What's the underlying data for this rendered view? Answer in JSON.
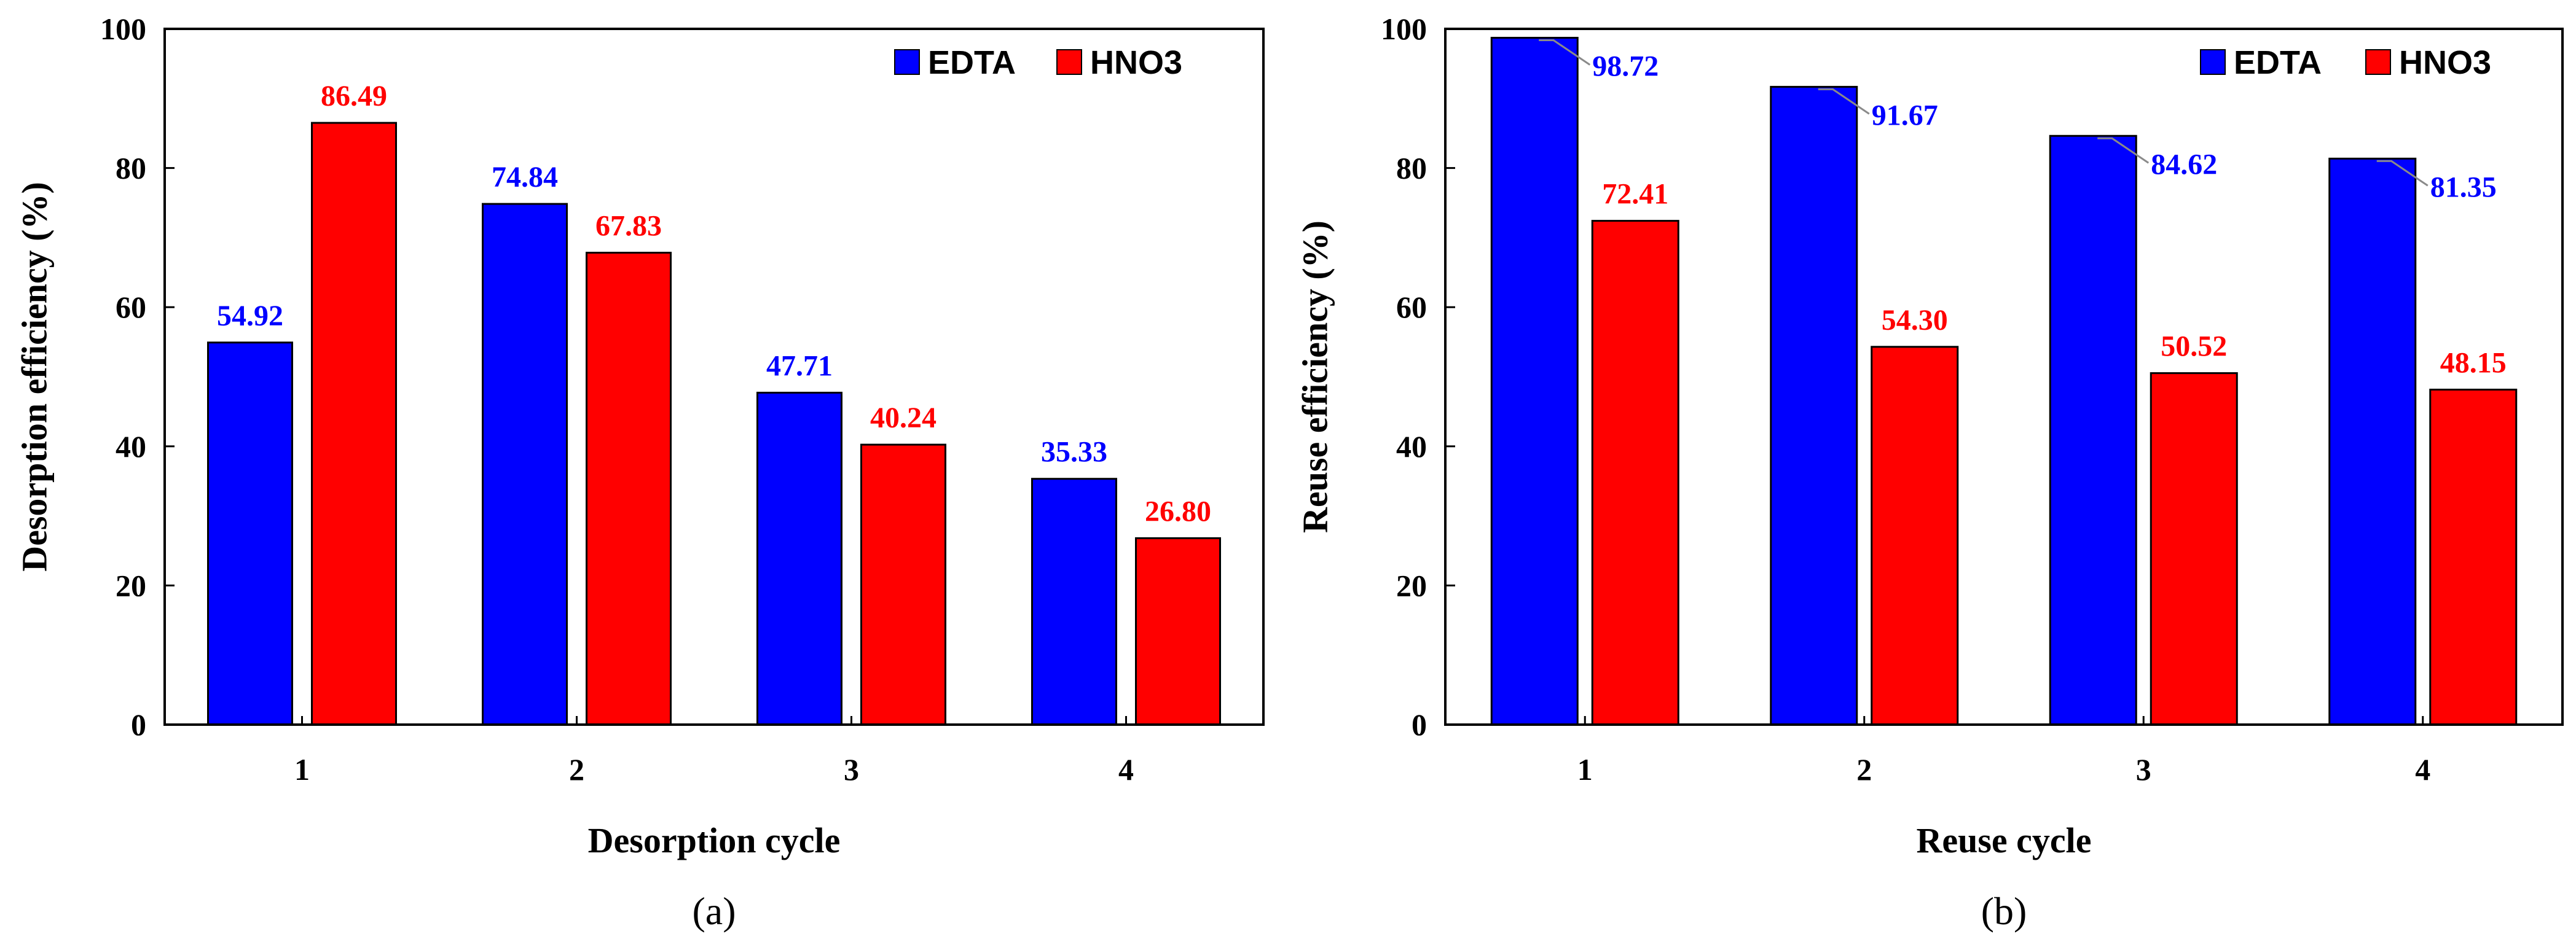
{
  "colors": {
    "EDTA": "#0000FF",
    "HNO3": "#FF0000",
    "axis": "#000000",
    "leader": "#8a8a8a"
  },
  "chart_data": [
    {
      "type": "bar",
      "panel_label": "(a)",
      "xlabel": "Desorption cycle",
      "ylabel": "Desorption  efficiency (%)",
      "categories": [
        "1",
        "2",
        "3",
        "4"
      ],
      "ylim": [
        0,
        100
      ],
      "yticks": [
        0,
        20,
        40,
        60,
        80,
        100
      ],
      "legend": "top-right",
      "series": [
        {
          "name": "EDTA",
          "values": [
            54.92,
            74.84,
            47.71,
            35.33
          ],
          "labels": [
            "54.92",
            "74.84",
            "47.71",
            "35.33"
          ]
        },
        {
          "name": "HNO3",
          "values": [
            86.49,
            67.83,
            40.24,
            26.8
          ],
          "labels": [
            "86.49",
            "67.83",
            "40.24",
            "26.80"
          ]
        }
      ]
    },
    {
      "type": "bar",
      "panel_label": "(b)",
      "xlabel": "Reuse cycle",
      "ylabel": "Reuse efficiency (%)",
      "categories": [
        "1",
        "2",
        "3",
        "4"
      ],
      "ylim": [
        0,
        100
      ],
      "yticks": [
        0,
        20,
        40,
        60,
        80,
        100
      ],
      "legend": "top-right",
      "series": [
        {
          "name": "EDTA",
          "values": [
            98.72,
            91.67,
            84.62,
            81.35
          ],
          "labels": [
            "98.72",
            "91.67",
            "84.62",
            "81.35"
          ]
        },
        {
          "name": "HNO3",
          "values": [
            72.41,
            54.3,
            50.52,
            48.15
          ],
          "labels": [
            "72.41",
            "54.30",
            "50.52",
            "48.15"
          ]
        }
      ]
    }
  ]
}
